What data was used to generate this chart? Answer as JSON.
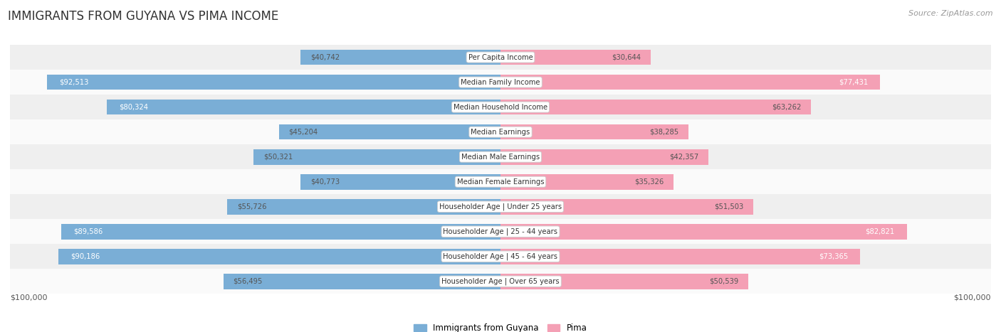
{
  "title": "IMMIGRANTS FROM GUYANA VS PIMA INCOME",
  "source": "Source: ZipAtlas.com",
  "categories": [
    "Per Capita Income",
    "Median Family Income",
    "Median Household Income",
    "Median Earnings",
    "Median Male Earnings",
    "Median Female Earnings",
    "Householder Age | Under 25 years",
    "Householder Age | 25 - 44 years",
    "Householder Age | 45 - 64 years",
    "Householder Age | Over 65 years"
  ],
  "guyana_values": [
    40742,
    92513,
    80324,
    45204,
    50321,
    40773,
    55726,
    89586,
    90186,
    56495
  ],
  "pima_values": [
    30644,
    77431,
    63262,
    38285,
    42357,
    35326,
    51503,
    82821,
    73365,
    50539
  ],
  "guyana_color": "#7aaed6",
  "pima_color": "#f4a0b5",
  "max_value": 100000,
  "bg_row_light": "#efefef",
  "bg_row_dark": "#e5e5e5",
  "bar_height": 0.62,
  "legend_guyana": "Immigrants from Guyana",
  "legend_pima": "Pima",
  "xlabel_left": "$100,000",
  "xlabel_right": "$100,000",
  "inside_threshold_guyana": 68000,
  "inside_threshold_pima": 68000
}
